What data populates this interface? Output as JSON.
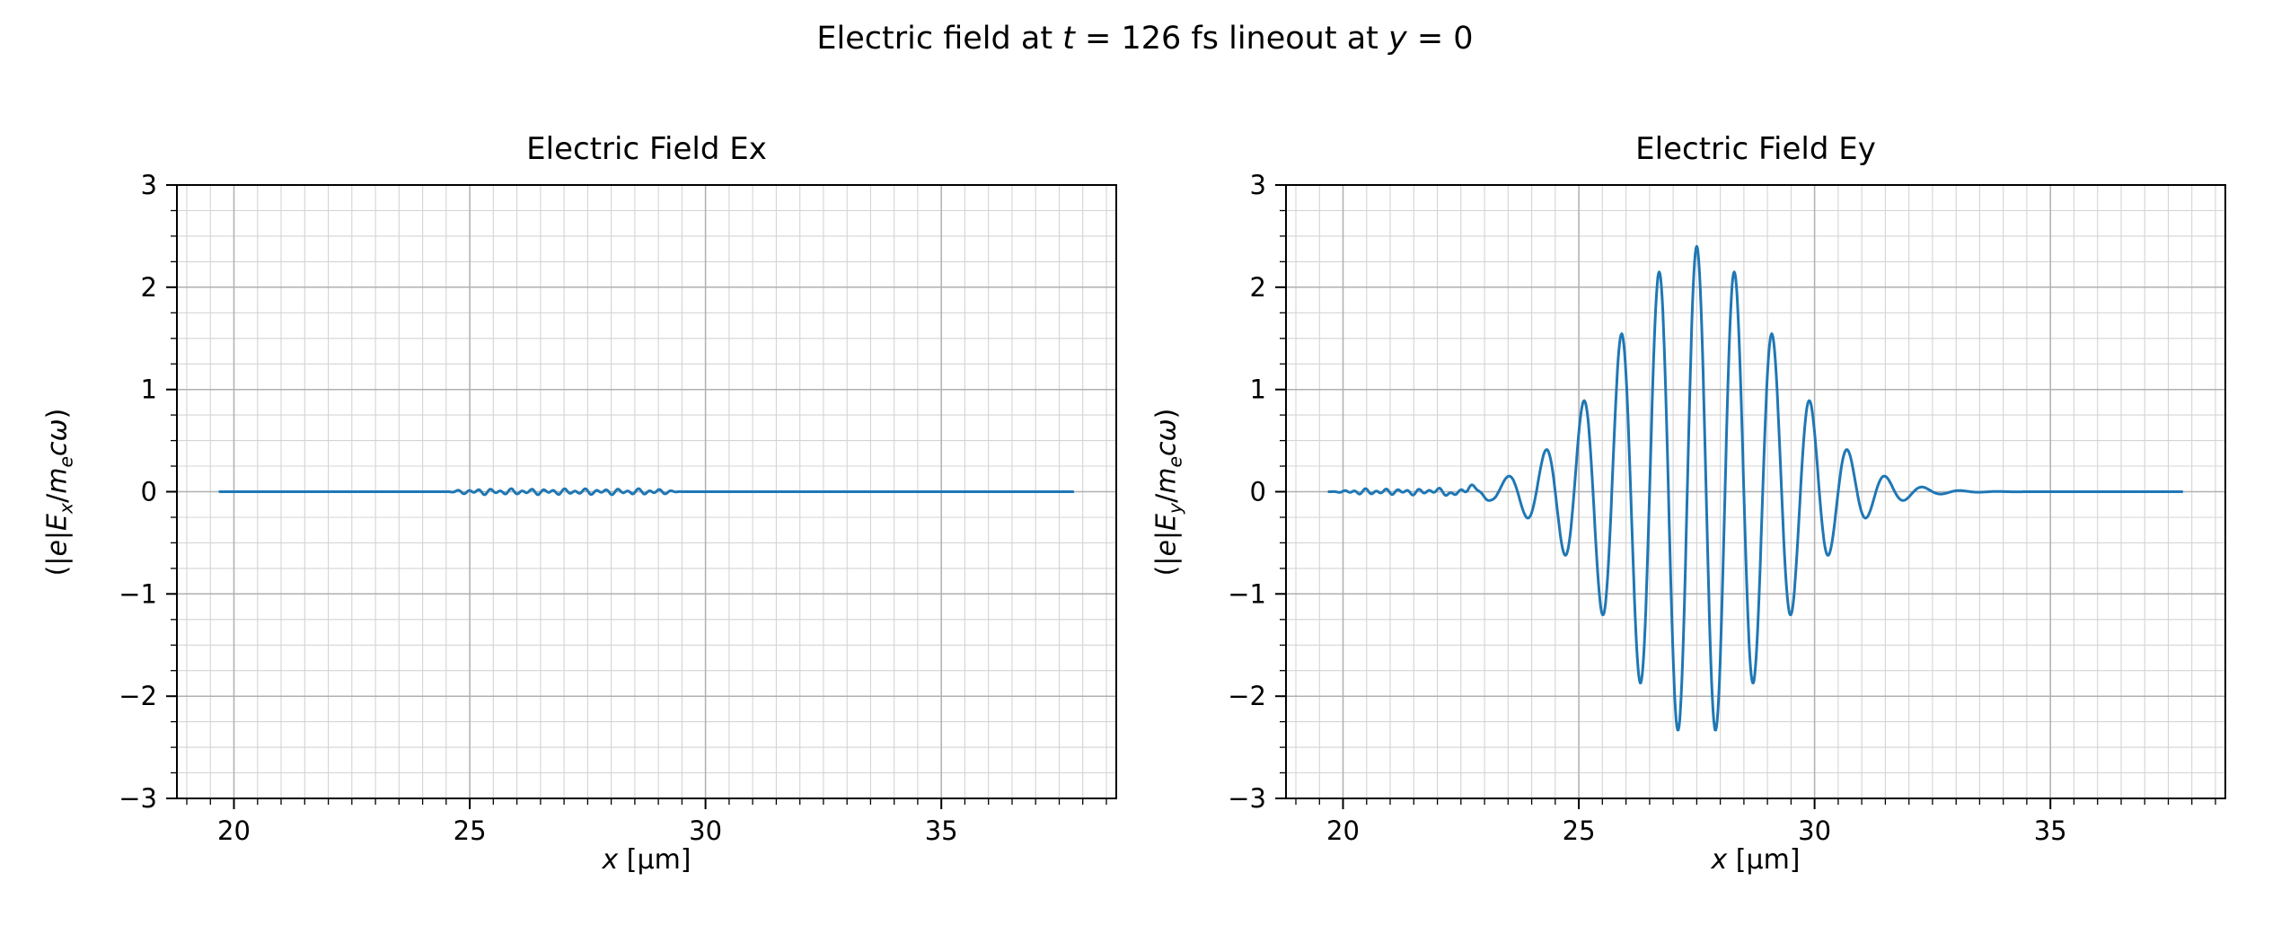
{
  "figure": {
    "suptitle": "Electric field at t = 126 fs lineout at y = 0",
    "suptitle_parts": [
      {
        "text": "Electric field at "
      },
      {
        "text": "t",
        "italic": true
      },
      {
        "text": " = 126 fs lineout at "
      },
      {
        "text": "y",
        "italic": true
      },
      {
        "text": " = 0"
      }
    ],
    "background": "#ffffff",
    "line_color": "#1f77b4",
    "grid_major_color": "#b0b0b0",
    "grid_minor_color": "#d4d4d4",
    "spine_color": "#000000"
  },
  "chart_data": [
    {
      "type": "line",
      "title": "Electric Field Ex",
      "xlabel": "x [µm]",
      "ylabel": "(|e|E_x/m_e cω)",
      "xlabel_parts": [
        {
          "text": "x",
          "italic": true
        },
        {
          "text": " [µm]"
        }
      ],
      "ylabel_parts": [
        {
          "text": "(|"
        },
        {
          "text": "e",
          "italic": true
        },
        {
          "text": "|"
        },
        {
          "text": "E",
          "italic": true
        },
        {
          "text": "x",
          "italic": true,
          "sub": true
        },
        {
          "text": "/"
        },
        {
          "text": "m",
          "italic": true
        },
        {
          "text": "e",
          "italic": true,
          "sub": true
        },
        {
          "text": "c",
          "italic": true
        },
        {
          "text": "ω",
          "italic": true
        },
        {
          "text": ")"
        }
      ],
      "xlim": [
        18.79,
        38.71
      ],
      "ylim": [
        -3,
        3
      ],
      "xticks": [
        20,
        25,
        30,
        35
      ],
      "yticks": [
        -3,
        -2,
        -1,
        0,
        1,
        2,
        3
      ],
      "x_minor_step": 0.5,
      "y_minor_step": 0.25,
      "grid": "both",
      "line_color": "#1f77b4",
      "series": [
        {
          "name": "Ex",
          "signal": {
            "kind": "flat",
            "x_start": 19.7,
            "x_end": 37.8,
            "baseline": 0,
            "noise": {
              "amplitude": 0.03,
              "from": 24.4,
              "to": 29.6
            }
          },
          "readout_note_values": {
            "baseline_value": 0,
            "max_ripple": 0.03
          }
        }
      ]
    },
    {
      "type": "line",
      "title": "Electric Field Ey",
      "xlabel": "x [µm]",
      "ylabel": "(|e|E_y/m_e cω)",
      "xlabel_parts": [
        {
          "text": "x",
          "italic": true
        },
        {
          "text": " [µm]"
        }
      ],
      "ylabel_parts": [
        {
          "text": "(|"
        },
        {
          "text": "e",
          "italic": true
        },
        {
          "text": "|"
        },
        {
          "text": "E",
          "italic": true
        },
        {
          "text": "y",
          "italic": true,
          "sub": true
        },
        {
          "text": "/"
        },
        {
          "text": "m",
          "italic": true
        },
        {
          "text": "e",
          "italic": true,
          "sub": true
        },
        {
          "text": "c",
          "italic": true
        },
        {
          "text": "ω",
          "italic": true
        },
        {
          "text": ")"
        }
      ],
      "xlim": [
        18.79,
        38.71
      ],
      "ylim": [
        -3,
        3
      ],
      "xticks": [
        20,
        25,
        30,
        35
      ],
      "yticks": [
        -3,
        -2,
        -1,
        0,
        1,
        2,
        3
      ],
      "x_minor_step": 0.5,
      "y_minor_step": 0.25,
      "grid": "both",
      "line_color": "#1f77b4",
      "series": [
        {
          "name": "Ey",
          "signal": {
            "kind": "gaussian_pulse",
            "x_start": 19.7,
            "x_end": 37.8,
            "center": 27.5,
            "amplitude": 2.4,
            "sigma": 1.7,
            "wavelength": 0.8,
            "phase_deg": 90,
            "noise": {
              "amplitude": 0.03,
              "from": 19.7,
              "to": 23.3
            }
          },
          "positive_peaks_x_y": [
            [
              23.5,
              0.15
            ],
            [
              24.3,
              0.4
            ],
            [
              25.1,
              0.9
            ],
            [
              25.9,
              1.55
            ],
            [
              26.7,
              2.15
            ],
            [
              27.5,
              2.4
            ],
            [
              28.3,
              2.15
            ],
            [
              29.1,
              1.55
            ],
            [
              29.9,
              0.9
            ],
            [
              30.7,
              0.4
            ],
            [
              31.5,
              0.15
            ]
          ],
          "negative_peaks_x_y": [
            [
              24.7,
              -0.6
            ],
            [
              25.5,
              -1.25
            ],
            [
              26.3,
              -1.9
            ],
            [
              27.1,
              -2.35
            ],
            [
              27.9,
              -2.35
            ],
            [
              28.7,
              -1.9
            ],
            [
              29.5,
              -1.25
            ],
            [
              30.3,
              -0.6
            ]
          ]
        }
      ]
    }
  ]
}
